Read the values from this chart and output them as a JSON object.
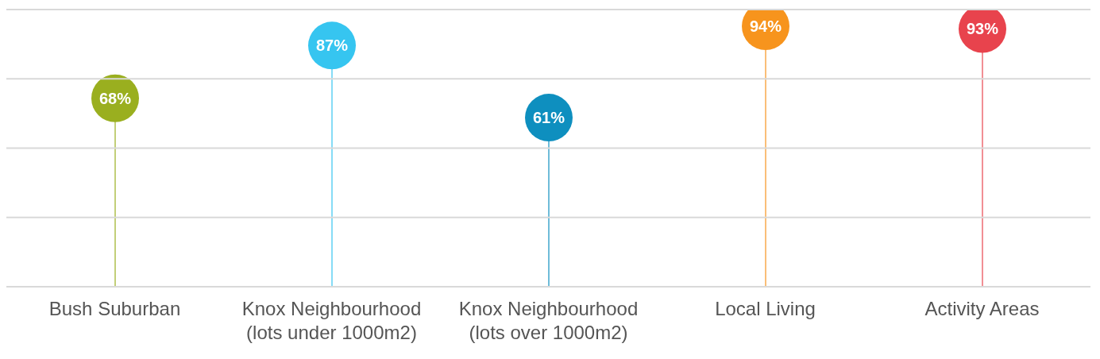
{
  "chart_data": {
    "type": "lollipop",
    "categories": [
      "Bush Suburban",
      "Knox Neighbourhood (lots under 1000m2)",
      "Knox Neighbourhood (lots over 1000m2)",
      "Local Living",
      "Activity Areas"
    ],
    "values": [
      68,
      87,
      61,
      94,
      93
    ],
    "value_labels": [
      "68%",
      "87%",
      "61%",
      "94%",
      "93%"
    ],
    "colors": [
      "#9aaf1f",
      "#36c5f0",
      "#0e8fbf",
      "#f7941d",
      "#e8434d"
    ],
    "ylim": [
      0,
      100
    ],
    "yticks": [
      {
        "value": 0,
        "label": null
      },
      {
        "value": 25,
        "label": null
      },
      {
        "value": 50,
        "label": null
      },
      {
        "value": 75,
        "label": null
      },
      {
        "value": 100,
        "label": null
      }
    ],
    "grid": "y",
    "tick_labels": "x",
    "legend": false
  }
}
